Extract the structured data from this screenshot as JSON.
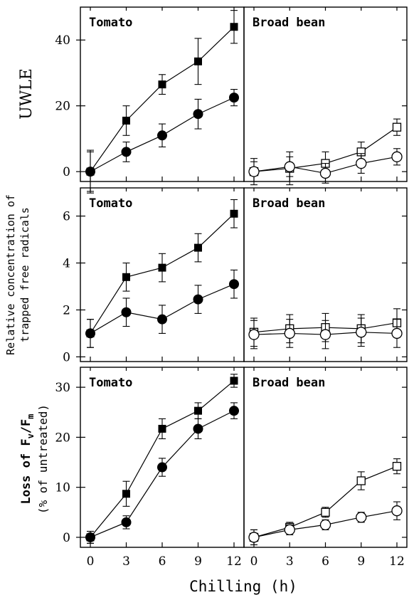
{
  "figure": {
    "xlabel": "Chilling (h)",
    "x_ticks": [
      0,
      3,
      6,
      9,
      12
    ],
    "rows": [
      {
        "ylabel_lines": [
          "UWLE"
        ],
        "y_ticks": [
          0,
          20,
          40
        ],
        "ylim": [
          -3,
          50
        ]
      },
      {
        "ylabel_lines": [
          "Relative concentration of",
          "trapped free radicals"
        ],
        "y_ticks": [
          0,
          2,
          4,
          6
        ],
        "ylim": [
          -0.2,
          7.2
        ]
      },
      {
        "ylabel_lines": [
          "Loss of Fv/Fm",
          "(% of untreated)"
        ],
        "y_ticks": [
          0,
          10,
          20,
          30
        ],
        "ylim": [
          -2,
          34
        ]
      }
    ]
  },
  "chart_data": [
    {
      "type": "line",
      "title": "Tomato",
      "ylabel": "UWLE",
      "x": [
        0,
        3,
        6,
        9,
        12
      ],
      "ylim": [
        -3,
        50
      ],
      "series": [
        {
          "marker": "filled-square",
          "values": [
            0,
            15.5,
            26.5,
            33.5,
            44
          ],
          "errors": [
            6.5,
            4.5,
            3,
            7,
            5
          ]
        },
        {
          "marker": "filled-circle",
          "values": [
            0,
            6,
            11,
            17.5,
            22.5
          ],
          "errors": [
            6,
            3,
            3.5,
            4.5,
            2.5
          ]
        }
      ]
    },
    {
      "type": "line",
      "title": "Broad bean",
      "x": [
        0,
        3,
        6,
        9,
        12
      ],
      "ylim": [
        -3,
        50
      ],
      "series": [
        {
          "marker": "open-square",
          "values": [
            0,
            1,
            2.5,
            6,
            13.5
          ],
          "errors": [
            4,
            5,
            3.5,
            3,
            2.5
          ]
        },
        {
          "marker": "open-circle",
          "values": [
            0,
            1.5,
            -0.5,
            2.5,
            4.5
          ],
          "errors": [
            3,
            3,
            3,
            3,
            2.5
          ]
        }
      ]
    },
    {
      "type": "line",
      "title": "Tomato",
      "ylabel": "Relative concentration of trapped free radicals",
      "x": [
        0,
        3,
        6,
        9,
        12
      ],
      "ylim": [
        -0.2,
        7.2
      ],
      "series": [
        {
          "marker": "filled-square",
          "values": [
            1,
            3.4,
            3.8,
            4.65,
            6.1
          ],
          "errors": [
            0.6,
            0.6,
            0.6,
            0.6,
            0.6
          ]
        },
        {
          "marker": "filled-circle",
          "values": [
            1,
            1.9,
            1.6,
            2.45,
            3.1
          ],
          "errors": [
            0.6,
            0.6,
            0.6,
            0.6,
            0.6
          ]
        }
      ]
    },
    {
      "type": "line",
      "title": "Broad bean",
      "x": [
        0,
        3,
        6,
        9,
        12
      ],
      "ylim": [
        -0.2,
        7.2
      ],
      "series": [
        {
          "marker": "open-square",
          "values": [
            1.05,
            1.2,
            1.25,
            1.2,
            1.45
          ],
          "errors": [
            0.6,
            0.6,
            0.6,
            0.6,
            0.6
          ]
        },
        {
          "marker": "open-circle",
          "values": [
            0.95,
            1.0,
            0.95,
            1.05,
            1.0
          ],
          "errors": [
            0.6,
            0.6,
            0.6,
            0.6,
            0.6
          ]
        }
      ]
    },
    {
      "type": "line",
      "title": "Tomato",
      "ylabel": "Loss of Fv/Fm (% of untreated)",
      "x": [
        0,
        3,
        6,
        9,
        12
      ],
      "ylim": [
        -2,
        34
      ],
      "series": [
        {
          "marker": "filled-square",
          "values": [
            0,
            8.7,
            21.7,
            25.3,
            31.3
          ],
          "errors": [
            1.2,
            2.5,
            2,
            1.6,
            1.3
          ]
        },
        {
          "marker": "filled-circle",
          "values": [
            0,
            3,
            14,
            21.7,
            25.3
          ],
          "errors": [
            1.2,
            1.3,
            1.8,
            2,
            1.6
          ]
        }
      ]
    },
    {
      "type": "line",
      "title": "Broad bean",
      "x": [
        0,
        3,
        6,
        9,
        12
      ],
      "ylim": [
        -2,
        34
      ],
      "series": [
        {
          "marker": "open-square",
          "values": [
            0,
            2,
            5,
            11.3,
            14.2
          ],
          "errors": [
            1.5,
            1,
            1,
            1.8,
            1.5
          ]
        },
        {
          "marker": "open-circle",
          "values": [
            0,
            1.5,
            2.5,
            4,
            5.3
          ],
          "errors": [
            1.5,
            1,
            1,
            1,
            1.8
          ]
        }
      ]
    }
  ]
}
